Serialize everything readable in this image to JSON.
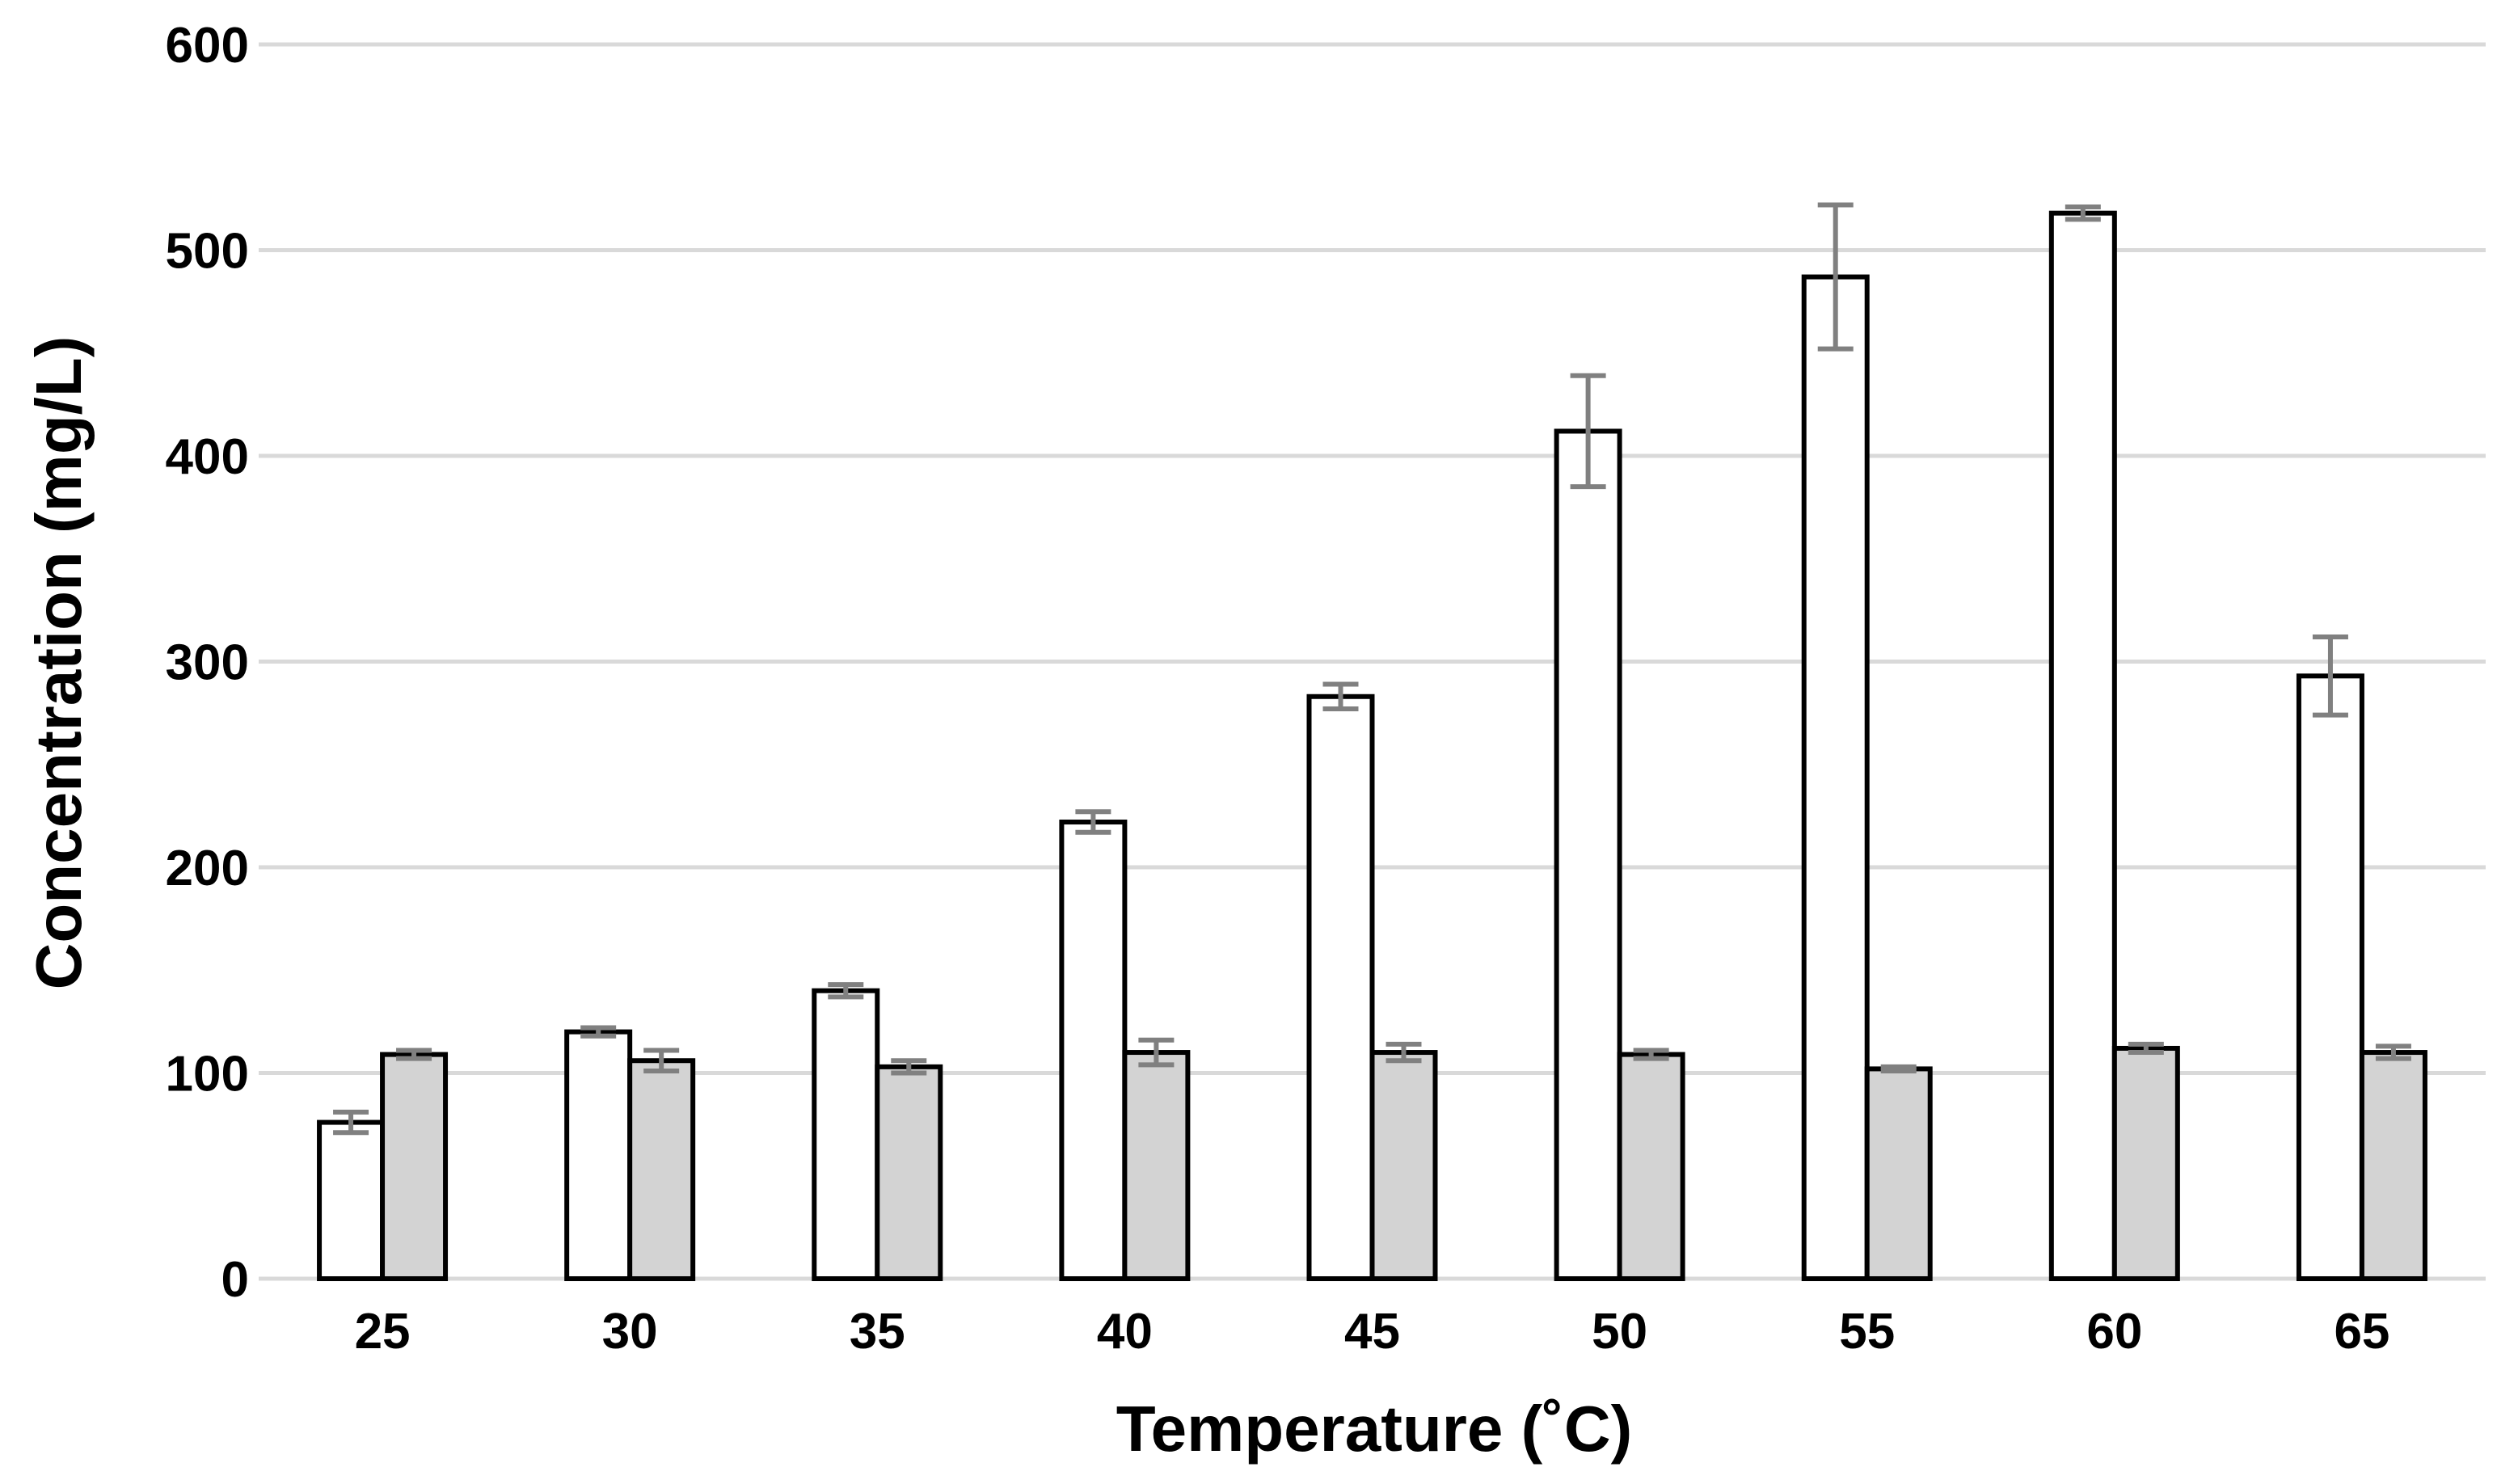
{
  "chart_data": {
    "type": "bar",
    "xlabel": "Temperature (˚C)",
    "ylabel": "Concentration (mg/L)",
    "ylim": [
      0,
      600
    ],
    "yticks": [
      0,
      100,
      200,
      300,
      400,
      500,
      600
    ],
    "grid": "horizontal",
    "categories": [
      "25",
      "30",
      "35",
      "40",
      "45",
      "50",
      "55",
      "60",
      "65"
    ],
    "series": [
      {
        "fill": "#ffffff",
        "values": [
          76,
          120,
          140,
          222,
          283,
          412,
          487,
          518,
          293
        ],
        "errors": [
          5,
          2,
          3,
          5,
          6,
          27,
          35,
          3,
          19
        ]
      },
      {
        "fill": "#d3d3d3",
        "values": [
          109,
          106,
          103,
          110,
          110,
          109,
          102,
          112,
          110
        ],
        "errors": [
          2,
          5,
          3,
          6,
          4,
          2,
          1,
          2,
          3
        ]
      }
    ],
    "colors": {
      "bar_stroke": "#000000",
      "error_bar": "#808080",
      "grid": "#d9d9d9"
    }
  }
}
